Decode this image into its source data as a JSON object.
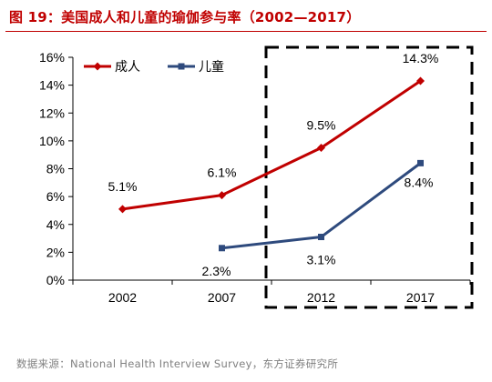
{
  "title": "图 19：美国成人和儿童的瑜伽参与率（2002—2017）",
  "source": "数据来源：National Health Interview Survey，东方证券研究所",
  "colors": {
    "title": "#c00000",
    "adults": "#c00000",
    "children": "#2e4a7d"
  },
  "chart_data": {
    "type": "line",
    "title": "",
    "xlabel": "",
    "ylabel": "",
    "categories": [
      "2002",
      "2007",
      "2012",
      "2017"
    ],
    "ylim": [
      0,
      16
    ],
    "yticks": [
      "0%",
      "2%",
      "4%",
      "6%",
      "8%",
      "10%",
      "12%",
      "14%",
      "16%"
    ],
    "grid": false,
    "legend": "top-left",
    "highlight": {
      "type": "dashed-box",
      "from_category": "2012",
      "to_category": "2017"
    },
    "series": [
      {
        "name": "成人",
        "color": "#c00000",
        "marker": "diamond",
        "values": [
          5.1,
          6.1,
          9.5,
          14.3
        ],
        "labels": [
          "5.1%",
          "6.1%",
          "9.5%",
          "14.3%"
        ]
      },
      {
        "name": "儿童",
        "color": "#2e4a7d",
        "marker": "square",
        "values": [
          null,
          2.3,
          3.1,
          8.4
        ],
        "labels": [
          "",
          "2.3%",
          "3.1%",
          "8.4%"
        ]
      }
    ]
  }
}
